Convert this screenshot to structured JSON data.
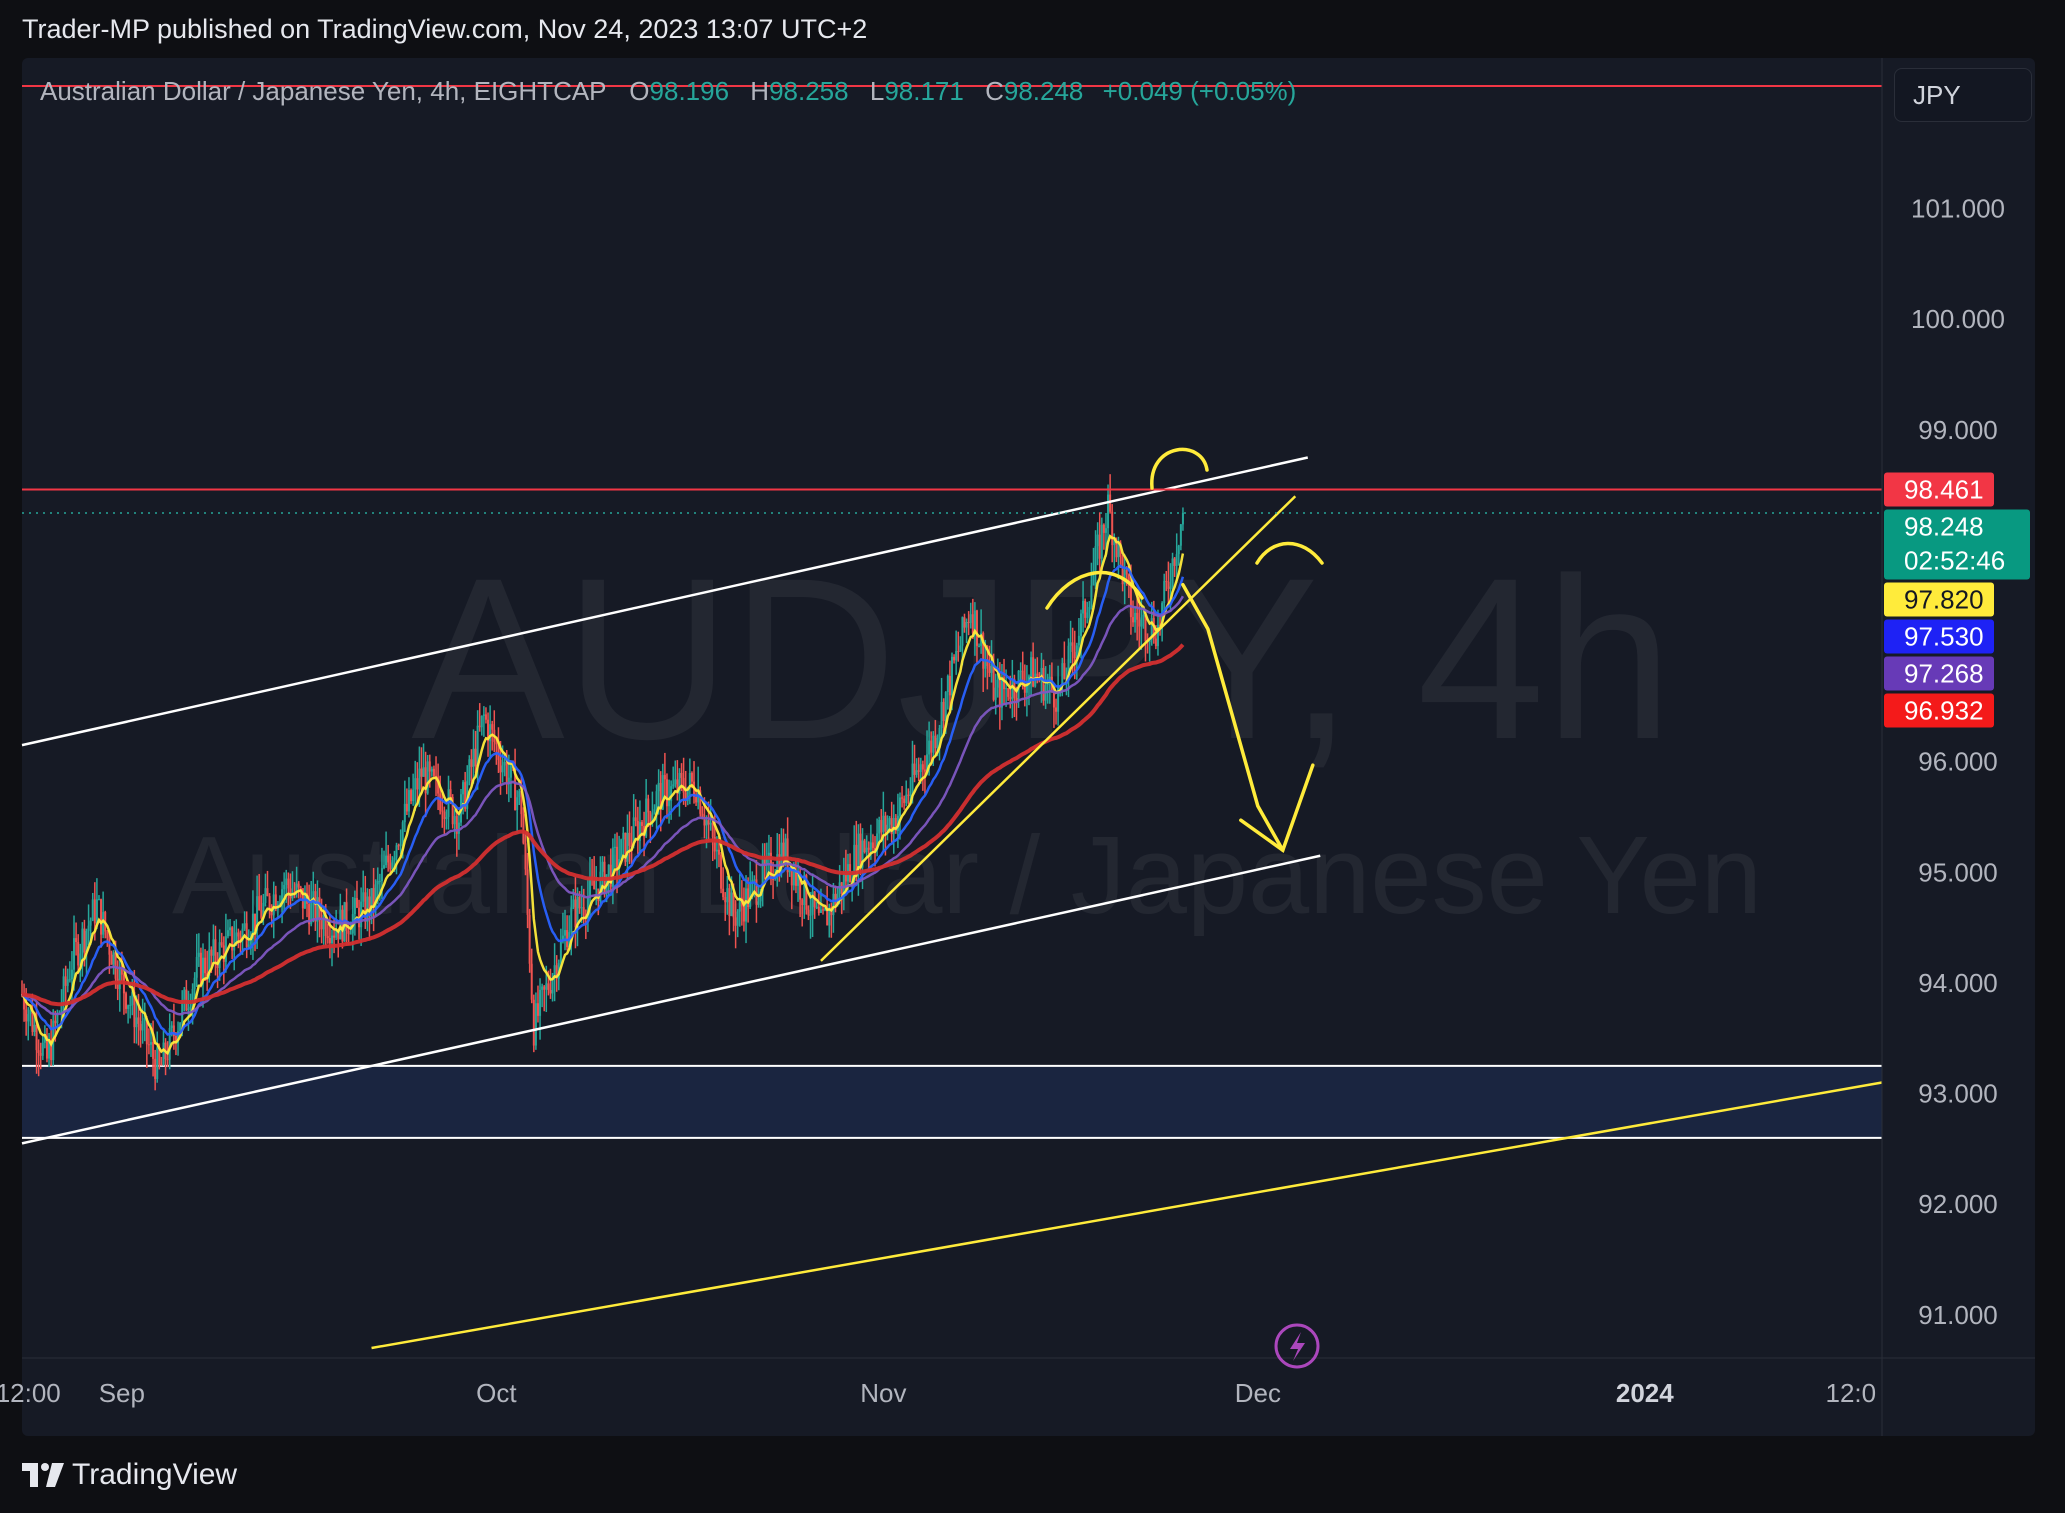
{
  "header": {
    "published_text": "Trader-MP published on TradingView.com, Nov 24, 2023 13:07 UTC+2"
  },
  "legend": {
    "symbol_text": "Australian Dollar / Japanese Yen, 4h, EIGHTCAP",
    "open_label": "O",
    "open": "98.196",
    "high_label": "H",
    "high": "98.258",
    "low_label": "L",
    "low": "98.171",
    "close_label": "C",
    "close": "98.248",
    "change": "+0.049 (+0.05%)"
  },
  "currency_button": {
    "label": "JPY"
  },
  "watermark": {
    "ticker": "AUDJPY, 4h",
    "name": "Australian Dollar / Japanese Yen"
  },
  "footer": {
    "brand": "TradingView"
  },
  "colors": {
    "background": "#161a25",
    "up": "#26a69a",
    "down": "#ef5350",
    "ema_fast": "#ffeb3b",
    "ema_mid": "#2962ff",
    "ema_slow": "#7e57c2",
    "ema_long": "#d32f2f",
    "annotation": "#ffeb3b",
    "resistance": "#f23645"
  },
  "chart_data": {
    "type": "candlestick",
    "y_axis": {
      "ticks": [
        "101.000",
        "100.000",
        "99.000",
        "96.000",
        "95.000",
        "94.000",
        "93.000",
        "92.000",
        "91.000"
      ],
      "range": [
        90.7,
        102.0
      ]
    },
    "x_axis": {
      "ticks": [
        {
          "label": "12:00",
          "date": "2023-08-24T12:00"
        },
        {
          "label": "Sep",
          "date": "2023-09-01"
        },
        {
          "label": "Oct",
          "date": "2023-10-01"
        },
        {
          "label": "Nov",
          "date": "2023-11-01"
        },
        {
          "label": "Dec",
          "date": "2023-12-01"
        },
        {
          "label": "2024",
          "date": "2024-01-01",
          "bold": true
        },
        {
          "label": "12:0",
          "date": "2024-01-17T12:00"
        }
      ],
      "range": [
        "2023-08-24T00:00",
        "2024-01-20T00:00"
      ]
    },
    "price_badges": [
      {
        "value": "98.461",
        "color": "#f23645",
        "text_color": "#ffffff"
      },
      {
        "value": "98.248",
        "sub": "02:52:46",
        "color": "#089981",
        "text_color": "#ffffff"
      },
      {
        "value": "97.820",
        "color": "#ffeb3b",
        "text_color": "#131722"
      },
      {
        "value": "97.530",
        "color": "#1e22f5",
        "text_color": "#ffffff"
      },
      {
        "value": "97.268",
        "color": "#673ab7",
        "text_color": "#ffffff"
      },
      {
        "value": "96.932",
        "color": "#f41a1a",
        "text_color": "#ffffff"
      }
    ],
    "anchors": [
      [
        "2023-08-24T00:00",
        93.9
      ],
      [
        "2023-08-26T00:00",
        93.3
      ],
      [
        "2023-08-28T00:00",
        94.2
      ],
      [
        "2023-08-30T00:00",
        94.7
      ],
      [
        "2023-09-01T00:00",
        94.0
      ],
      [
        "2023-09-04T00:00",
        93.2
      ],
      [
        "2023-09-07T00:00",
        94.1
      ],
      [
        "2023-09-11T00:00",
        94.5
      ],
      [
        "2023-09-14T00:00",
        94.9
      ],
      [
        "2023-09-18T00:00",
        94.5
      ],
      [
        "2023-09-21T00:00",
        94.7
      ],
      [
        "2023-09-25T00:00",
        95.9
      ],
      [
        "2023-09-28T00:00",
        95.5
      ],
      [
        "2023-09-30T00:00",
        96.4
      ],
      [
        "2023-10-03T00:00",
        95.6
      ],
      [
        "2023-10-04T00:00",
        93.6
      ],
      [
        "2023-10-07T00:00",
        94.6
      ],
      [
        "2023-10-10T00:00",
        95.0
      ],
      [
        "2023-10-14T00:00",
        95.7
      ],
      [
        "2023-10-17T00:00",
        95.8
      ],
      [
        "2023-10-20T00:00",
        94.6
      ],
      [
        "2023-10-24T00:00",
        95.2
      ],
      [
        "2023-10-27T00:00",
        94.5
      ],
      [
        "2023-10-30T00:00",
        95.2
      ],
      [
        "2023-11-02T00:00",
        95.5
      ],
      [
        "2023-11-05T00:00",
        96.2
      ],
      [
        "2023-11-08T00:00",
        97.4
      ],
      [
        "2023-11-10T00:00",
        96.6
      ],
      [
        "2023-11-13T00:00",
        96.8
      ],
      [
        "2023-11-15T00:00",
        96.6
      ],
      [
        "2023-11-17T00:00",
        97.3
      ],
      [
        "2023-11-19T00:00",
        98.3
      ],
      [
        "2023-11-21T00:00",
        97.3
      ],
      [
        "2023-11-23T00:00",
        97.2
      ],
      [
        "2023-11-25T00:00",
        98.25
      ]
    ],
    "drawings": {
      "channel_upper": [
        [
          "2023-08-24T00:00",
          96.15
        ],
        [
          "2023-12-05T00:00",
          98.75
        ]
      ],
      "channel_lower": [
        [
          "2023-08-24T00:00",
          92.55
        ],
        [
          "2023-12-06T00:00",
          95.15
        ]
      ],
      "horizontal_line": 98.461,
      "support_zone": [
        92.6,
        93.25
      ],
      "yellow_trendline_short": [
        [
          "2023-10-27T00:00",
          94.2
        ],
        [
          "2023-12-04T00:00",
          98.4
        ]
      ],
      "yellow_trendline_long": [
        [
          "2023-09-21T00:00",
          90.7
        ],
        [
          "2024-01-20T00:00",
          93.1
        ]
      ],
      "projected_path": [
        [
          "2023-11-25T00:00",
          97.6
        ],
        [
          "2023-11-27T00:00",
          97.2
        ],
        [
          "2023-11-29T00:00",
          96.4
        ],
        [
          "2023-12-01T00:00",
          95.6
        ],
        [
          "2023-12-03T00:00",
          95.2
        ]
      ]
    }
  }
}
